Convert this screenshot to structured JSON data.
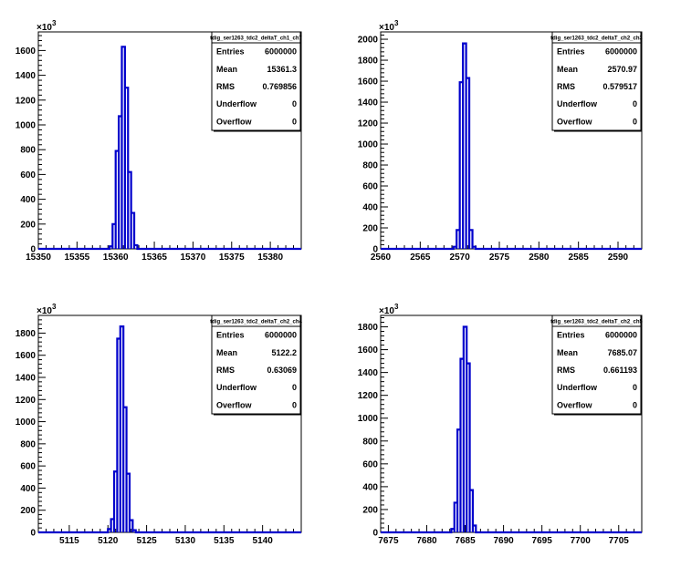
{
  "chart_data": [
    {
      "type": "bar",
      "title": "tdig_ser1263_tdc2_deltaT_ch1_ch7",
      "xlim": [
        15350,
        15384
      ],
      "ylim": [
        0,
        1750
      ],
      "y_multiplier_label": "×10",
      "y_multiplier_exp": "3",
      "x_ticks": [
        15350,
        15355,
        15360,
        15365,
        15370,
        15375,
        15380
      ],
      "y_ticks": [
        0,
        200,
        400,
        600,
        800,
        1000,
        1200,
        1400,
        1600
      ],
      "bin_width": 0.4,
      "bins": [
        {
          "x": 15359.2,
          "y": 20
        },
        {
          "x": 15359.6,
          "y": 200
        },
        {
          "x": 15360.0,
          "y": 790
        },
        {
          "x": 15360.4,
          "y": 1070
        },
        {
          "x": 15360.8,
          "y": 1630
        },
        {
          "x": 15361.2,
          "y": 1300
        },
        {
          "x": 15361.6,
          "y": 620
        },
        {
          "x": 15362.0,
          "y": 290
        },
        {
          "x": 15362.4,
          "y": 30
        }
      ],
      "stats": [
        {
          "label": "Entries",
          "value": "6000000"
        },
        {
          "label": "Mean",
          "value": "15361.3"
        },
        {
          "label": "RMS",
          "value": "0.769856"
        },
        {
          "label": "Underflow",
          "value": "0"
        },
        {
          "label": "Overflow",
          "value": "0"
        }
      ]
    },
    {
      "type": "bar",
      "title": "tdig_ser1263_tdc2_deltaT_ch2_ch3",
      "xlim": [
        2560,
        2593
      ],
      "ylim": [
        0,
        2070
      ],
      "y_multiplier_label": "×10",
      "y_multiplier_exp": "3",
      "x_ticks": [
        2560,
        2565,
        2570,
        2575,
        2580,
        2585,
        2590
      ],
      "y_ticks": [
        0,
        200,
        400,
        600,
        800,
        1000,
        1200,
        1400,
        1600,
        1800,
        2000
      ],
      "bin_width": 0.4,
      "bins": [
        {
          "x": 2569.2,
          "y": 20
        },
        {
          "x": 2569.6,
          "y": 180
        },
        {
          "x": 2570.0,
          "y": 1590
        },
        {
          "x": 2570.4,
          "y": 1960
        },
        {
          "x": 2570.8,
          "y": 1630
        },
        {
          "x": 2571.2,
          "y": 180
        },
        {
          "x": 2571.6,
          "y": 20
        }
      ],
      "stats": [
        {
          "label": "Entries",
          "value": "6000000"
        },
        {
          "label": "Mean",
          "value": "2570.97"
        },
        {
          "label": "RMS",
          "value": "0.579517"
        },
        {
          "label": "Underflow",
          "value": "0"
        },
        {
          "label": "Overflow",
          "value": "0"
        }
      ]
    },
    {
      "type": "bar",
      "title": "tdig_ser1263_tdc2_deltaT_ch2_ch4",
      "xlim": [
        5111,
        5145
      ],
      "ylim": [
        0,
        1960
      ],
      "y_multiplier_label": "×10",
      "y_multiplier_exp": "3",
      "x_ticks": [
        5115,
        5120,
        5125,
        5130,
        5135,
        5140
      ],
      "y_ticks": [
        0,
        200,
        400,
        600,
        800,
        1000,
        1200,
        1400,
        1600,
        1800
      ],
      "bin_width": 0.4,
      "bins": [
        {
          "x": 5120.0,
          "y": 30
        },
        {
          "x": 5120.4,
          "y": 120
        },
        {
          "x": 5120.8,
          "y": 550
        },
        {
          "x": 5121.2,
          "y": 1750
        },
        {
          "x": 5121.6,
          "y": 1860
        },
        {
          "x": 5122.0,
          "y": 1130
        },
        {
          "x": 5122.4,
          "y": 530
        },
        {
          "x": 5122.8,
          "y": 110
        },
        {
          "x": 5123.2,
          "y": 20
        }
      ],
      "stats": [
        {
          "label": "Entries",
          "value": "6000000"
        },
        {
          "label": "Mean",
          "value": "5122.2"
        },
        {
          "label": "RMS",
          "value": "0.63069"
        },
        {
          "label": "Underflow",
          "value": "0"
        },
        {
          "label": "Overflow",
          "value": "0"
        }
      ]
    },
    {
      "type": "bar",
      "title": "tdig_ser1263_tdc2_deltaT_ch2_ch5",
      "xlim": [
        7674,
        7708
      ],
      "ylim": [
        0,
        1900
      ],
      "y_multiplier_label": "×10",
      "y_multiplier_exp": "3",
      "x_ticks": [
        7675,
        7680,
        7685,
        7690,
        7695,
        7700,
        7705
      ],
      "y_ticks": [
        0,
        200,
        400,
        600,
        800,
        1000,
        1200,
        1400,
        1600,
        1800
      ],
      "bin_width": 0.4,
      "bins": [
        {
          "x": 7683.2,
          "y": 30
        },
        {
          "x": 7683.6,
          "y": 260
        },
        {
          "x": 7684.0,
          "y": 900
        },
        {
          "x": 7684.4,
          "y": 1520
        },
        {
          "x": 7684.8,
          "y": 1800
        },
        {
          "x": 7685.2,
          "y": 1480
        },
        {
          "x": 7685.6,
          "y": 370
        },
        {
          "x": 7686.0,
          "y": 60
        }
      ],
      "stats": [
        {
          "label": "Entries",
          "value": "6000000"
        },
        {
          "label": "Mean",
          "value": "7685.07"
        },
        {
          "label": "RMS",
          "value": "0.661193"
        },
        {
          "label": "Underflow",
          "value": "0"
        },
        {
          "label": "Overflow",
          "value": "0"
        }
      ]
    }
  ],
  "colors": {
    "histogram_line": "#0000cc",
    "axis": "#000000",
    "background": "#ffffff"
  }
}
